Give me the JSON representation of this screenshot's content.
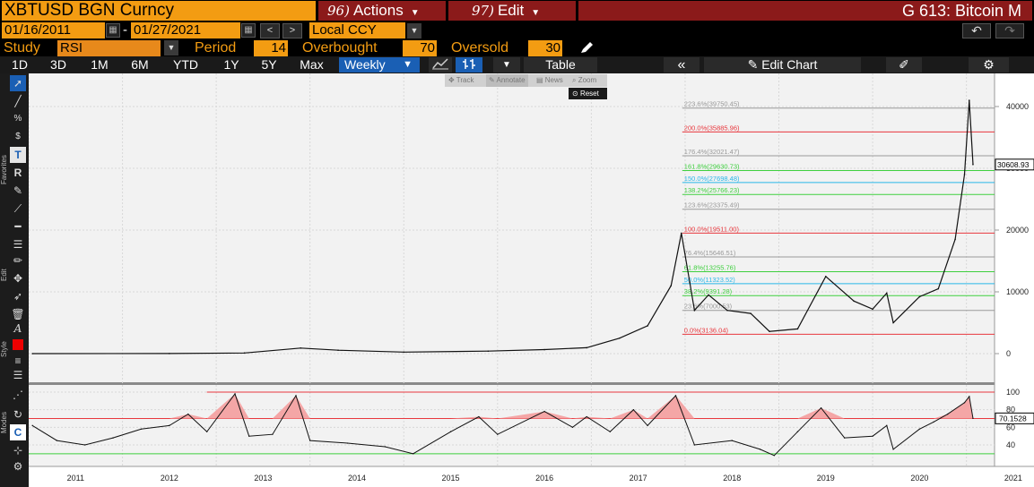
{
  "header": {
    "ticker": "XBTUSD BGN  Curncy",
    "actions": {
      "num": "96)",
      "label": "Actions"
    },
    "edit": {
      "num": "97)",
      "label": "Edit"
    },
    "title": "G 613: Bitcoin M"
  },
  "range": {
    "start": "01/16/2011",
    "end": "01/27/2021",
    "currency": "Local CCY"
  },
  "study": {
    "label": "Study",
    "value": "RSI",
    "period_label": "Period",
    "period": "14",
    "overbought_label": "Overbought",
    "overbought": "70",
    "oversold_label": "Oversold",
    "oversold": "30"
  },
  "toolbar": {
    "timeframes": [
      "1D",
      "3D",
      "1M",
      "6M",
      "YTD",
      "1Y",
      "5Y",
      "Max"
    ],
    "frequency": "Weekly",
    "table_label": "Table",
    "edit_chart_label": "Edit Chart"
  },
  "chart_tools": {
    "track": "Track",
    "annotate": "Annotate",
    "news": "News",
    "zoom": "Zoom",
    "reset": "Reset"
  },
  "sidebar": {
    "favorites": "Favorites",
    "edit": "Edit",
    "style": "Style",
    "modes": "Modes"
  },
  "colors": {
    "accent": "#f39c12",
    "header_red": "#8b1a1a",
    "selected_blue": "#1a5fb4",
    "fib_red": "#e8373d",
    "fib_green": "#3ecf3e",
    "fib_cyan": "#2ab7e8",
    "fib_gray": "#888888"
  },
  "chart_data": [
    {
      "type": "line",
      "name": "price",
      "y_ticks": [
        "40000",
        "30000",
        "20000",
        "10000",
        "0"
      ],
      "ylim": [
        -2000,
        43500
      ],
      "last_value": "30608.93",
      "x_ticks": [
        "2011",
        "2012",
        "2013",
        "2014",
        "2015",
        "2016",
        "2017",
        "2018",
        "2019",
        "2020",
        "2021"
      ],
      "fib_levels": [
        {
          "label": "223.6%(39750.45)",
          "value": 39750.45,
          "color": "gray"
        },
        {
          "label": "200.0%(35885.96)",
          "value": 35885.96,
          "color": "red"
        },
        {
          "label": "176.4%(32021.47)",
          "value": 32021.47,
          "color": "gray"
        },
        {
          "label": "161.8%(29630.73)",
          "value": 29630.73,
          "color": "green"
        },
        {
          "label": "150.0%(27698.48)",
          "value": 27698.48,
          "color": "cyan"
        },
        {
          "label": "138.2%(25766.23)",
          "value": 25766.23,
          "color": "green"
        },
        {
          "label": "123.6%(23375.49)",
          "value": 23375.49,
          "color": "gray"
        },
        {
          "label": "100.0%(19511.00)",
          "value": 19511.0,
          "color": "red"
        },
        {
          "label": "76.4%(15646.51)",
          "value": 15646.51,
          "color": "gray"
        },
        {
          "label": "61.8%(13255.76)",
          "value": 13255.76,
          "color": "green"
        },
        {
          "label": "50.0%(11323.52)",
          "value": 11323.52,
          "color": "cyan"
        },
        {
          "label": "38.2%(9391.28)",
          "value": 9391.28,
          "color": "green"
        },
        {
          "label": "23.6%(7000.53)",
          "value": 7000.53,
          "color": "gray"
        },
        {
          "label": "0.0%(3136.04)",
          "value": 3136.04,
          "color": "red"
        }
      ],
      "series": [
        {
          "t": 2011.04,
          "v": 0
        },
        {
          "t": 2012.5,
          "v": 10
        },
        {
          "t": 2013.3,
          "v": 100
        },
        {
          "t": 2013.9,
          "v": 900
        },
        {
          "t": 2014.3,
          "v": 550
        },
        {
          "t": 2015.0,
          "v": 250
        },
        {
          "t": 2015.9,
          "v": 400
        },
        {
          "t": 2016.5,
          "v": 650
        },
        {
          "t": 2016.95,
          "v": 950
        },
        {
          "t": 2017.3,
          "v": 2500
        },
        {
          "t": 2017.6,
          "v": 4500
        },
        {
          "t": 2017.85,
          "v": 11000
        },
        {
          "t": 2017.96,
          "v": 19500
        },
        {
          "t": 2018.05,
          "v": 11500
        },
        {
          "t": 2018.1,
          "v": 7000
        },
        {
          "t": 2018.25,
          "v": 9500
        },
        {
          "t": 2018.45,
          "v": 7000
        },
        {
          "t": 2018.7,
          "v": 6500
        },
        {
          "t": 2018.9,
          "v": 3600
        },
        {
          "t": 2019.2,
          "v": 4000
        },
        {
          "t": 2019.5,
          "v": 12500
        },
        {
          "t": 2019.8,
          "v": 8500
        },
        {
          "t": 2020.0,
          "v": 7200
        },
        {
          "t": 2020.15,
          "v": 9800
        },
        {
          "t": 2020.22,
          "v": 5000
        },
        {
          "t": 2020.5,
          "v": 9200
        },
        {
          "t": 2020.7,
          "v": 10500
        },
        {
          "t": 2020.88,
          "v": 18500
        },
        {
          "t": 2020.98,
          "v": 29000
        },
        {
          "t": 2021.03,
          "v": 41000
        },
        {
          "t": 2021.07,
          "v": 30608.93
        }
      ]
    },
    {
      "type": "line",
      "name": "RSI",
      "y_ticks": [
        "100",
        "80",
        "60",
        "40"
      ],
      "ylim": [
        25,
        102
      ],
      "overbought": 70,
      "oversold": 30,
      "last_value": "70.1528",
      "series": [
        {
          "t": 2011.04,
          "v": 62
        },
        {
          "t": 2011.3,
          "v": 45
        },
        {
          "t": 2011.6,
          "v": 40
        },
        {
          "t": 2011.9,
          "v": 48
        },
        {
          "t": 2012.2,
          "v": 58
        },
        {
          "t": 2012.5,
          "v": 62
        },
        {
          "t": 2012.7,
          "v": 75
        },
        {
          "t": 2012.9,
          "v": 55
        },
        {
          "t": 2013.2,
          "v": 98
        },
        {
          "t": 2013.35,
          "v": 50
        },
        {
          "t": 2013.6,
          "v": 52
        },
        {
          "t": 2013.85,
          "v": 96
        },
        {
          "t": 2014.0,
          "v": 45
        },
        {
          "t": 2014.4,
          "v": 42
        },
        {
          "t": 2014.8,
          "v": 38
        },
        {
          "t": 2015.1,
          "v": 30
        },
        {
          "t": 2015.5,
          "v": 55
        },
        {
          "t": 2015.8,
          "v": 72
        },
        {
          "t": 2016.0,
          "v": 52
        },
        {
          "t": 2016.5,
          "v": 78
        },
        {
          "t": 2016.8,
          "v": 60
        },
        {
          "t": 2016.95,
          "v": 72
        },
        {
          "t": 2017.2,
          "v": 55
        },
        {
          "t": 2017.45,
          "v": 80
        },
        {
          "t": 2017.6,
          "v": 62
        },
        {
          "t": 2017.9,
          "v": 96
        },
        {
          "t": 2018.1,
          "v": 40
        },
        {
          "t": 2018.5,
          "v": 45
        },
        {
          "t": 2018.8,
          "v": 35
        },
        {
          "t": 2018.95,
          "v": 28
        },
        {
          "t": 2019.2,
          "v": 55
        },
        {
          "t": 2019.45,
          "v": 82
        },
        {
          "t": 2019.7,
          "v": 48
        },
        {
          "t": 2020.0,
          "v": 50
        },
        {
          "t": 2020.15,
          "v": 62
        },
        {
          "t": 2020.22,
          "v": 35
        },
        {
          "t": 2020.5,
          "v": 58
        },
        {
          "t": 2020.65,
          "v": 66
        },
        {
          "t": 2020.8,
          "v": 75
        },
        {
          "t": 2020.98,
          "v": 88
        },
        {
          "t": 2021.03,
          "v": 95
        },
        {
          "t": 2021.07,
          "v": 70.15
        }
      ]
    }
  ]
}
